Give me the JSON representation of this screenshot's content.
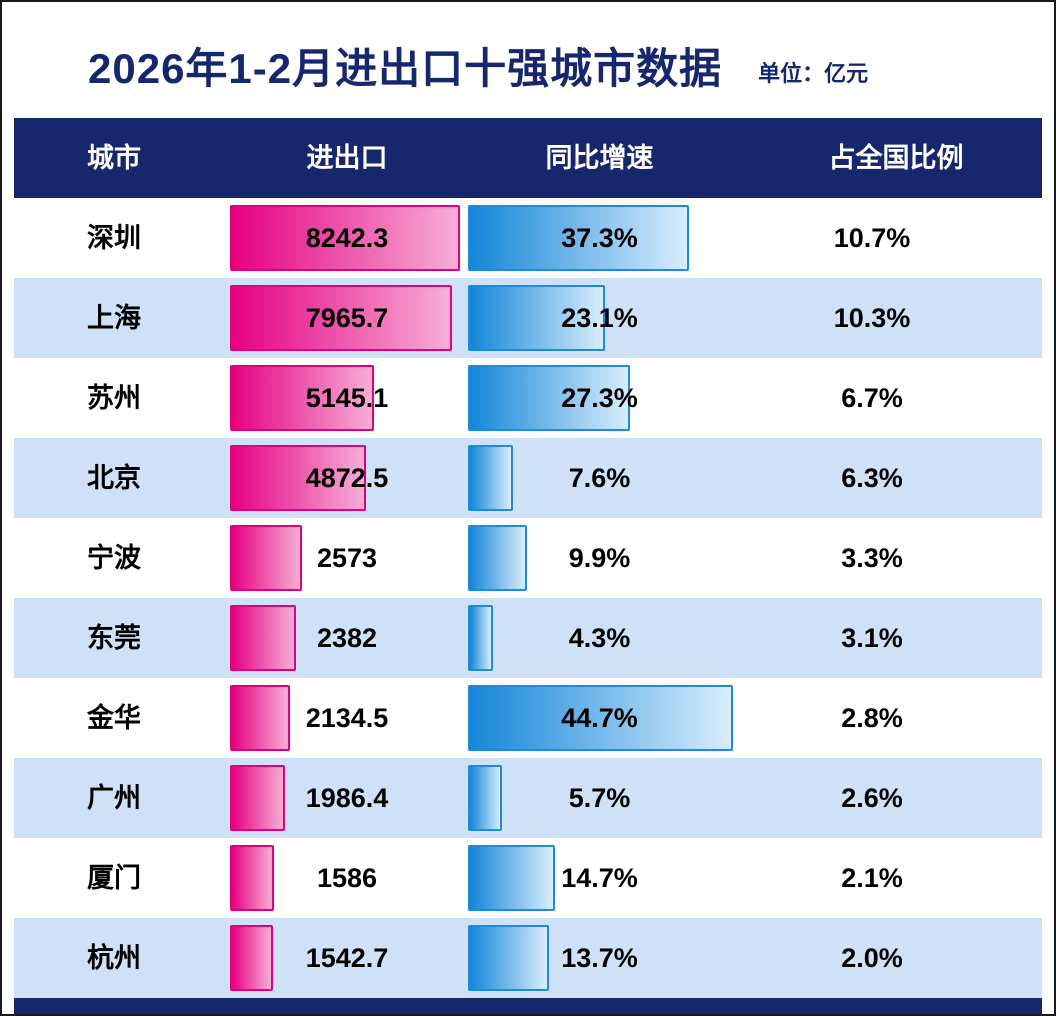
{
  "title": "2026年1-2月进出口十强城市数据",
  "unit_label": "单位：亿元",
  "columns": [
    "城市",
    "进出口",
    "同比增速",
    "占全国比例"
  ],
  "colors": {
    "navy": "#17276d",
    "row_alt": "#cfe1f6",
    "pink_start": "#e60082",
    "pink_end": "#f6aed6",
    "blue_start": "#1486d8",
    "blue_end": "#d8edfc"
  },
  "chart_data": {
    "type": "bar",
    "title": "2026年1-2月进出口十强城市数据",
    "unit": "亿元",
    "categories": [
      "深圳",
      "上海",
      "苏州",
      "北京",
      "宁波",
      "东莞",
      "金华",
      "广州",
      "厦门",
      "杭州"
    ],
    "series": [
      {
        "name": "进出口",
        "values": [
          8242.3,
          7965.7,
          5145.1,
          4872.5,
          2573,
          2382,
          2134.5,
          1986.4,
          1586,
          1542.7
        ]
      },
      {
        "name": "同比增速",
        "values": [
          37.3,
          23.1,
          27.3,
          7.6,
          9.9,
          4.3,
          44.7,
          5.7,
          14.7,
          13.7
        ]
      },
      {
        "name": "占全国比例",
        "values": [
          10.7,
          10.3,
          6.7,
          6.3,
          3.3,
          3.1,
          2.8,
          2.6,
          2.1,
          2.0
        ]
      }
    ],
    "legend_position": "none",
    "grid": false
  },
  "rows": [
    {
      "city": "深圳",
      "value": "8242.3",
      "growth": "37.3%",
      "share": "10.7%"
    },
    {
      "city": "上海",
      "value": "7965.7",
      "growth": "23.1%",
      "share": "10.3%"
    },
    {
      "city": "苏州",
      "value": "5145.1",
      "growth": "27.3%",
      "share": "6.7%"
    },
    {
      "city": "北京",
      "value": "4872.5",
      "growth": "7.6%",
      "share": "6.3%"
    },
    {
      "city": "宁波",
      "value": "2573",
      "growth": "9.9%",
      "share": "3.3%"
    },
    {
      "city": "东莞",
      "value": "2382",
      "growth": "4.3%",
      "share": "3.1%"
    },
    {
      "city": "金华",
      "value": "2134.5",
      "growth": "44.7%",
      "share": "2.8%"
    },
    {
      "city": "广州",
      "value": "1986.4",
      "growth": "5.7%",
      "share": "2.6%"
    },
    {
      "city": "厦门",
      "value": "1586",
      "growth": "14.7%",
      "share": "2.1%"
    },
    {
      "city": "杭州",
      "value": "1542.7",
      "growth": "13.7%",
      "share": "2.0%"
    }
  ]
}
